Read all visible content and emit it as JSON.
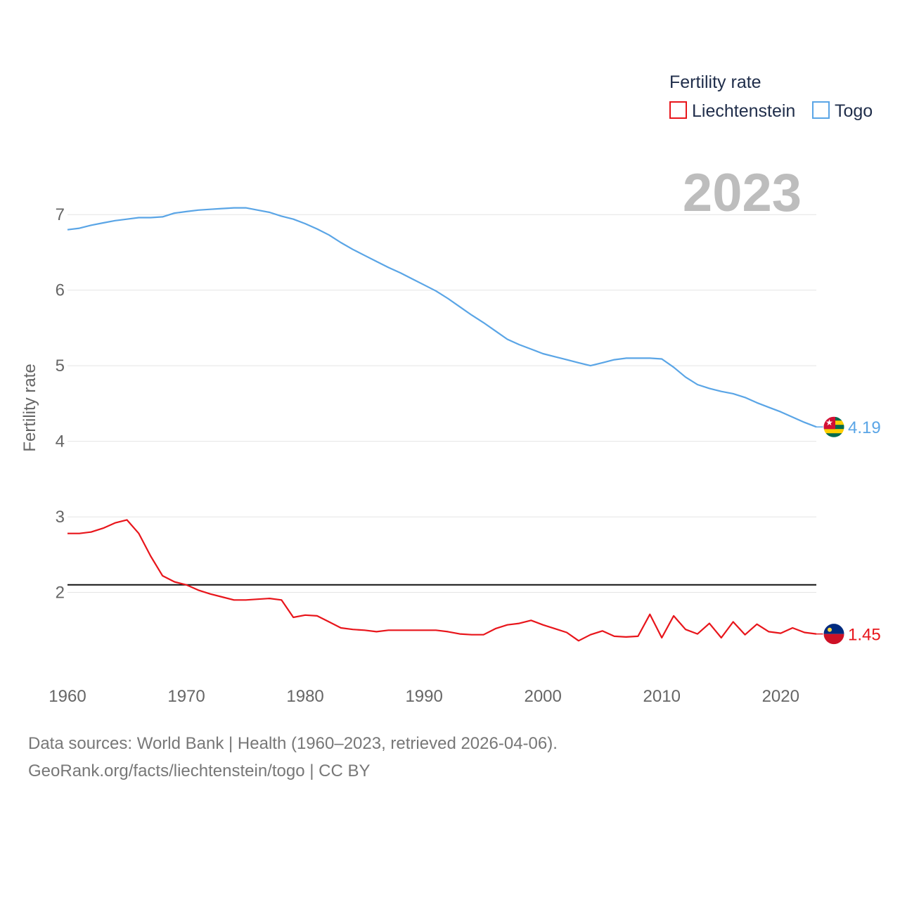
{
  "chart_data": {
    "type": "line",
    "title": "",
    "xlabel": "",
    "ylabel": "Fertility rate",
    "xlim": [
      1960,
      2023
    ],
    "ylim": [
      1.0,
      7.7
    ],
    "yticks": [
      2,
      3,
      4,
      5,
      6,
      7
    ],
    "xticks": [
      1960,
      1970,
      1980,
      1990,
      2000,
      2010,
      2020
    ],
    "current_year": "2023",
    "legend": {
      "title": "Fertility rate",
      "position": "top-right"
    },
    "reference_line": {
      "y": 2.1,
      "color": "#111111"
    },
    "x": [
      1960,
      1961,
      1962,
      1963,
      1964,
      1965,
      1966,
      1967,
      1968,
      1969,
      1970,
      1971,
      1972,
      1973,
      1974,
      1975,
      1976,
      1977,
      1978,
      1979,
      1980,
      1981,
      1982,
      1983,
      1984,
      1985,
      1986,
      1987,
      1988,
      1989,
      1990,
      1991,
      1992,
      1993,
      1994,
      1995,
      1996,
      1997,
      1998,
      1999,
      2000,
      2001,
      2002,
      2003,
      2004,
      2005,
      2006,
      2007,
      2008,
      2009,
      2010,
      2011,
      2012,
      2013,
      2014,
      2015,
      2016,
      2017,
      2018,
      2019,
      2020,
      2021,
      2022,
      2023
    ],
    "series": [
      {
        "name": "Liechtenstein",
        "color": "#e8151b",
        "end_label": "1.45",
        "flag_icon": "liechtenstein-flag-icon",
        "values": [
          2.78,
          2.78,
          2.8,
          2.85,
          2.92,
          2.96,
          2.78,
          2.48,
          2.22,
          2.14,
          2.1,
          2.03,
          1.98,
          1.94,
          1.9,
          1.9,
          1.91,
          1.92,
          1.9,
          1.67,
          1.7,
          1.69,
          1.61,
          1.53,
          1.51,
          1.5,
          1.48,
          1.5,
          1.5,
          1.5,
          1.5,
          1.5,
          1.48,
          1.45,
          1.44,
          1.44,
          1.52,
          1.57,
          1.59,
          1.63,
          1.57,
          1.52,
          1.47,
          1.36,
          1.44,
          1.49,
          1.42,
          1.41,
          1.42,
          1.71,
          1.4,
          1.69,
          1.51,
          1.45,
          1.59,
          1.4,
          1.61,
          1.44,
          1.58,
          1.48,
          1.46,
          1.53,
          1.47,
          1.45
        ]
      },
      {
        "name": "Togo",
        "color": "#5aa5e6",
        "end_label": "4.19",
        "flag_icon": "togo-flag-icon",
        "values": [
          6.8,
          6.82,
          6.86,
          6.89,
          6.92,
          6.94,
          6.96,
          6.96,
          6.97,
          7.02,
          7.04,
          7.06,
          7.07,
          7.08,
          7.09,
          7.09,
          7.06,
          7.03,
          6.98,
          6.94,
          6.88,
          6.81,
          6.73,
          6.63,
          6.54,
          6.46,
          6.38,
          6.3,
          6.23,
          6.15,
          6.07,
          5.99,
          5.89,
          5.78,
          5.67,
          5.57,
          5.46,
          5.35,
          5.28,
          5.22,
          5.16,
          5.12,
          5.08,
          5.04,
          5.0,
          5.04,
          5.08,
          5.1,
          5.1,
          5.1,
          5.09,
          4.98,
          4.85,
          4.75,
          4.7,
          4.66,
          4.63,
          4.58,
          4.51,
          4.45,
          4.39,
          4.32,
          4.25,
          4.19
        ]
      }
    ]
  },
  "footer": {
    "line1": "Data sources: World Bank | Health (1960–2023, retrieved 2026-04-06).",
    "line2": "GeoRank.org/facts/liechtenstein/togo | CC BY"
  }
}
